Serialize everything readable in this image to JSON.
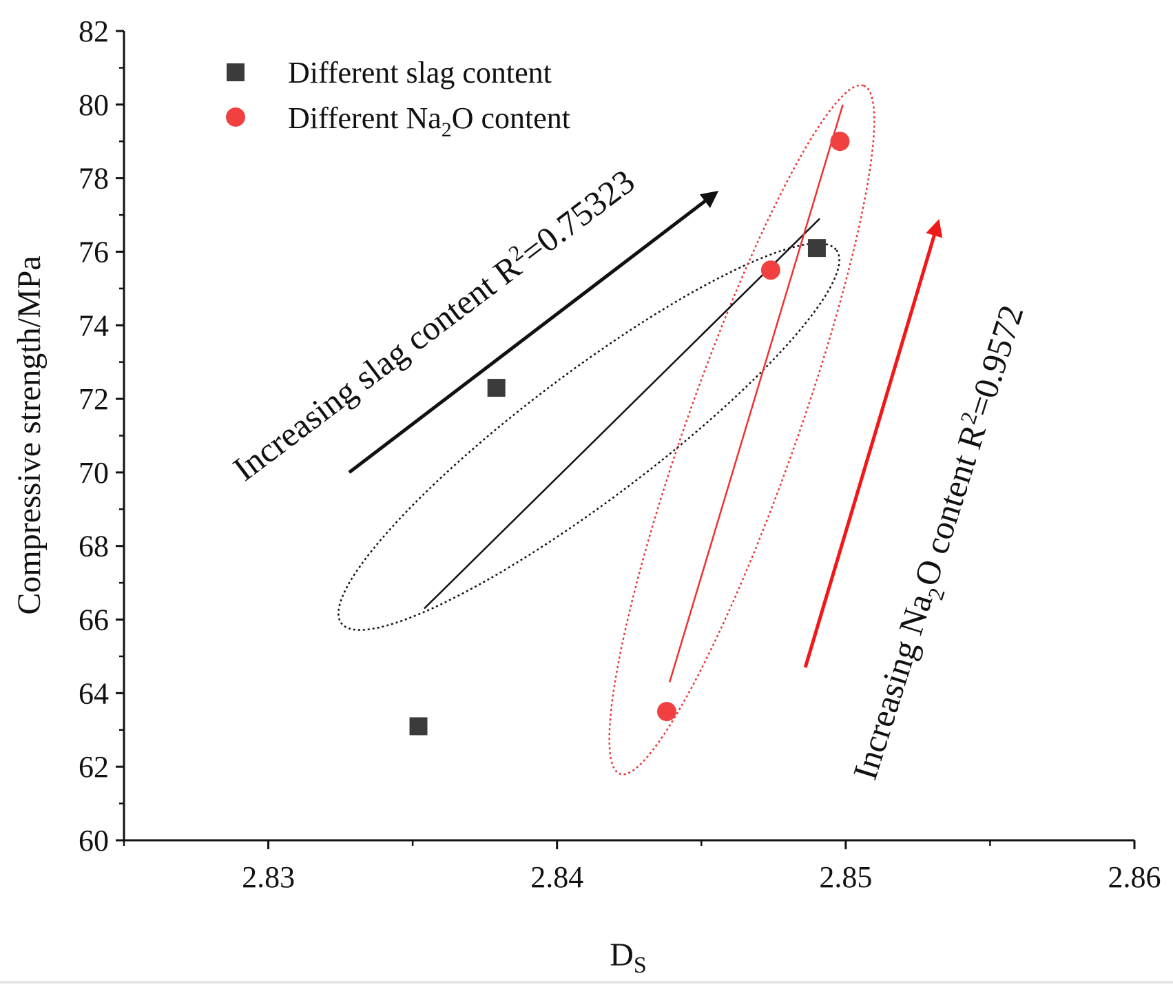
{
  "chart_data": {
    "type": "scatter",
    "xlabel": "D",
    "xlabel_sub": "S",
    "ylabel": "Compressive strength/MPa",
    "xlim": [
      2.825,
      2.86
    ],
    "ylim": [
      60,
      82
    ],
    "x_ticks": [
      2.83,
      2.84,
      2.85,
      2.86
    ],
    "x_tick_labels": [
      "2.83",
      "2.84",
      "2.85",
      "2.86"
    ],
    "y_ticks": [
      60,
      62,
      64,
      66,
      68,
      70,
      72,
      74,
      76,
      78,
      80,
      82
    ],
    "y_tick_labels": [
      "60",
      "62",
      "64",
      "66",
      "68",
      "70",
      "72",
      "74",
      "76",
      "78",
      "80",
      "82"
    ],
    "legend_position": "top-left",
    "series": [
      {
        "name": "Different slag content",
        "marker": "square",
        "color": "#3b3b3b",
        "points": [
          {
            "x": 2.8352,
            "y": 63.1
          },
          {
            "x": 2.8379,
            "y": 72.3
          },
          {
            "x": 2.849,
            "y": 76.1
          }
        ]
      },
      {
        "name": "Different Na2O content",
        "legend_prefix": "Different Na",
        "legend_sub": "2",
        "legend_suffix": "O content",
        "marker": "circle",
        "color": "#f04040",
        "points": [
          {
            "x": 2.8438,
            "y": 63.5
          },
          {
            "x": 2.8474,
            "y": 75.5
          },
          {
            "x": 2.8498,
            "y": 79.0
          }
        ]
      }
    ],
    "trend_lines": [
      {
        "series": "Different slag content",
        "color": "#111111",
        "from": [
          2.8354,
          66.3
        ],
        "to": [
          2.8491,
          76.9
        ]
      },
      {
        "series": "Different Na2O content",
        "color": "#f03030",
        "from": [
          2.8439,
          64.3
        ],
        "to": [
          2.8499,
          80.0
        ]
      }
    ],
    "annotations": [
      {
        "id": "slag",
        "text": "Increasing slag content R",
        "sup": "2",
        "suffix": "=0.75323",
        "color": "#111111",
        "arrow_from": [
          2.8328,
          70.0
        ],
        "arrow_to": [
          2.8455,
          77.6
        ]
      },
      {
        "id": "na2o",
        "text_prefix": "Increasing Na",
        "sub": "2",
        "text_mid": "O content R",
        "sup": "2",
        "suffix": "=0.9572",
        "color": "#f01818",
        "arrow_from": [
          2.8486,
          64.7
        ],
        "arrow_to": [
          2.8532,
          76.8
        ]
      }
    ]
  }
}
